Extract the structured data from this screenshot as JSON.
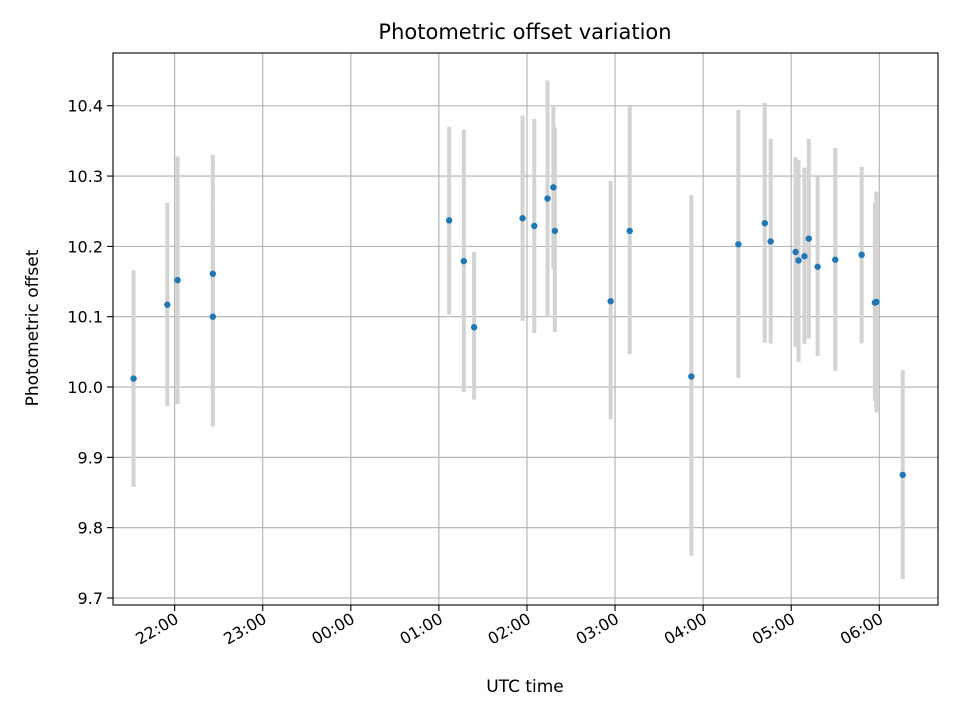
{
  "chart_data": {
    "type": "scatter",
    "title": "Photometric offset variation",
    "xlabel": "UTC time",
    "ylabel": "Photometric offset",
    "x_unit": "UTC clock time (HH:MM); values after midnight are on the following day",
    "xlim": [
      "21:18",
      "06:40"
    ],
    "ylim": [
      9.69,
      10.475
    ],
    "x_ticks": [
      "22:00",
      "23:00",
      "00:00",
      "01:00",
      "02:00",
      "03:00",
      "04:00",
      "05:00",
      "06:00"
    ],
    "y_ticks": [
      "9.7",
      "9.8",
      "9.9",
      "10.0",
      "10.1",
      "10.2",
      "10.3",
      "10.4"
    ],
    "grid": true,
    "colors": {
      "marker": "#1f77b4",
      "errorbar": "#d3d3d3",
      "grid": "#b0b0b0"
    },
    "series": [
      {
        "points": [
          {
            "time": "21:32",
            "value": 10.012,
            "lower": 9.858,
            "upper": 10.166
          },
          {
            "time": "21:55",
            "value": 10.117,
            "lower": 9.973,
            "upper": 10.262
          },
          {
            "time": "22:02",
            "value": 10.152,
            "lower": 9.976,
            "upper": 10.328
          },
          {
            "time": "22:26",
            "value": 10.1,
            "lower": 9.944,
            "upper": 10.258
          },
          {
            "time": "22:26",
            "value": 10.161,
            "lower": 9.995,
            "upper": 10.33
          },
          {
            "time": "01:07",
            "value": 10.237,
            "lower": 10.103,
            "upper": 10.37
          },
          {
            "time": "01:17",
            "value": 10.179,
            "lower": 9.993,
            "upper": 10.366
          },
          {
            "time": "01:24",
            "value": 10.085,
            "lower": 9.982,
            "upper": 10.192
          },
          {
            "time": "01:57",
            "value": 10.24,
            "lower": 10.094,
            "upper": 10.386
          },
          {
            "time": "02:05",
            "value": 10.229,
            "lower": 10.077,
            "upper": 10.381
          },
          {
            "time": "02:14",
            "value": 10.268,
            "lower": 10.1,
            "upper": 10.436
          },
          {
            "time": "02:18",
            "value": 10.284,
            "lower": 10.168,
            "upper": 10.4
          },
          {
            "time": "02:19",
            "value": 10.222,
            "lower": 10.078,
            "upper": 10.369
          },
          {
            "time": "02:57",
            "value": 10.122,
            "lower": 9.954,
            "upper": 10.293
          },
          {
            "time": "03:10",
            "value": 10.222,
            "lower": 10.047,
            "upper": 10.399
          },
          {
            "time": "03:52",
            "value": 10.015,
            "lower": 9.76,
            "upper": 10.273
          },
          {
            "time": "04:24",
            "value": 10.203,
            "lower": 10.013,
            "upper": 10.394
          },
          {
            "time": "04:42",
            "value": 10.233,
            "lower": 10.063,
            "upper": 10.404
          },
          {
            "time": "04:46",
            "value": 10.207,
            "lower": 10.062,
            "upper": 10.353
          },
          {
            "time": "05:03",
            "value": 10.192,
            "lower": 10.057,
            "upper": 10.327
          },
          {
            "time": "05:05",
            "value": 10.18,
            "lower": 10.036,
            "upper": 10.323
          },
          {
            "time": "05:09",
            "value": 10.186,
            "lower": 10.061,
            "upper": 10.312
          },
          {
            "time": "05:12",
            "value": 10.211,
            "lower": 10.069,
            "upper": 10.353
          },
          {
            "time": "05:18",
            "value": 10.171,
            "lower": 10.044,
            "upper": 10.299
          },
          {
            "time": "05:30",
            "value": 10.181,
            "lower": 10.023,
            "upper": 10.34
          },
          {
            "time": "05:48",
            "value": 10.188,
            "lower": 10.062,
            "upper": 10.313
          },
          {
            "time": "05:57",
            "value": 10.12,
            "lower": 9.98,
            "upper": 10.262
          },
          {
            "time": "05:58",
            "value": 10.121,
            "lower": 9.964,
            "upper": 10.278
          },
          {
            "time": "06:16",
            "value": 9.875,
            "lower": 9.727,
            "upper": 10.024
          }
        ]
      }
    ]
  }
}
